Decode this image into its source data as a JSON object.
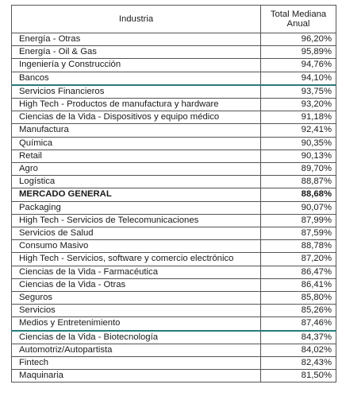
{
  "table": {
    "headers": {
      "industry": "Industria",
      "median_line1": "Total Mediana",
      "median_line2": "Anual"
    },
    "rows": [
      {
        "industry": "Energía - Otras",
        "value": "96,20%"
      },
      {
        "industry": "Energía - Oil & Gas",
        "value": "95,89%"
      },
      {
        "industry": "Ingeniería y Construcción",
        "value": "94,76%"
      },
      {
        "industry": "Bancos",
        "value": "94,10%"
      },
      {
        "industry": "Servicios Financieros",
        "value": "93,75%"
      },
      {
        "industry": "High Tech - Productos de manufactura y hardware",
        "value": "93,20%"
      },
      {
        "industry": "Ciencias de la Vida - Dispositivos y equipo médico",
        "value": "91,18%"
      },
      {
        "industry": "Manufactura",
        "value": "92,41%"
      },
      {
        "industry": "Química",
        "value": "90,35%"
      },
      {
        "industry": "Retail",
        "value": "90,13%"
      },
      {
        "industry": "Agro",
        "value": "89,70%"
      },
      {
        "industry": "Logística",
        "value": "88,87%"
      },
      {
        "industry": "MERCADO GENERAL",
        "value": "88,68%"
      },
      {
        "industry": "Packaging",
        "value": "90,07%"
      },
      {
        "industry": "High Tech - Servicios de Telecomunicaciones",
        "value": "87,99%"
      },
      {
        "industry": "Servicios de Salud",
        "value": "87,59%"
      },
      {
        "industry": "Consumo Masivo",
        "value": "88,78%"
      },
      {
        "industry": "High Tech - Servicios, software y comercio electrónico",
        "value": "87,20%"
      },
      {
        "industry": "Ciencias de la Vida - Farmacéutica",
        "value": "86,47%"
      },
      {
        "industry": "Ciencias de la Vida - Otras",
        "value": "86,41%"
      },
      {
        "industry": "Seguros",
        "value": "85,80%"
      },
      {
        "industry": "Servicios",
        "value": "85,26%"
      },
      {
        "industry": "Medios y Entretenimiento",
        "value": "87,46%"
      },
      {
        "industry": "Ciencias de la Vida - Biotecnología",
        "value": "84,37%"
      },
      {
        "industry": "Automotriz/Autopartista",
        "value": "84,02%"
      },
      {
        "industry": "Fintech",
        "value": "82,43%"
      },
      {
        "industry": "Maquinaria",
        "value": "81,50%"
      }
    ],
    "separator_color": "#2a7a7a",
    "border_color": "#555555"
  }
}
